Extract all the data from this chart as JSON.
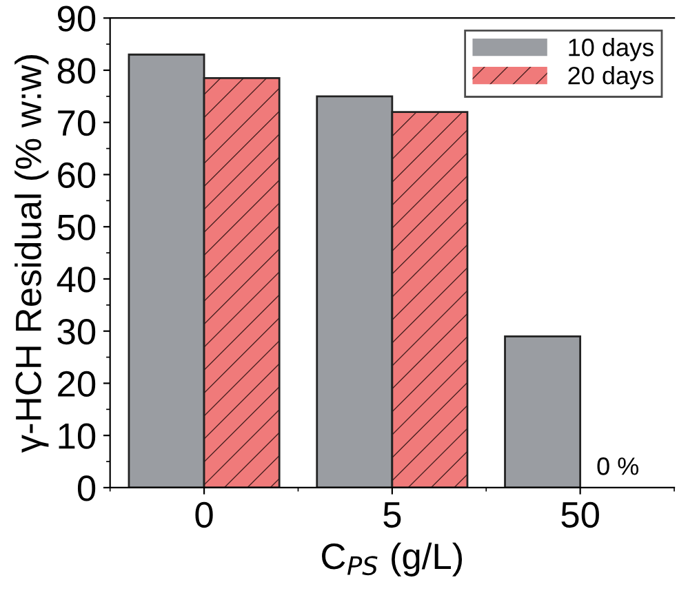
{
  "chart_data": {
    "type": "bar",
    "xlabel": "C$_{PS}$ (g/L)",
    "ylabel": "γ-HCH Residual (% w:w)",
    "categories": [
      "0",
      "5",
      "50"
    ],
    "series": [
      {
        "name": "10 days",
        "color": "#9a9da2",
        "values": [
          83,
          75,
          29
        ]
      },
      {
        "name": "20 days",
        "color": "#f07a7a",
        "values": [
          78.5,
          72,
          0
        ]
      }
    ],
    "ylim": [
      0,
      90
    ],
    "yticks": [
      0,
      10,
      20,
      30,
      40,
      50,
      60,
      70,
      80,
      90
    ],
    "annotations": [
      {
        "text": "0 %",
        "x": "50",
        "y": 0
      }
    ],
    "legend": "top right",
    "grid": false
  }
}
